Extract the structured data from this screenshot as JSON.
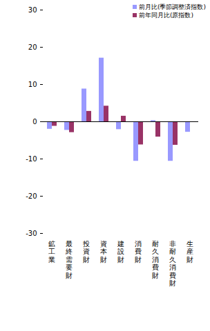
{
  "chart_data": {
    "type": "bar",
    "categories": [
      "鉱工業",
      "最終需要財",
      "投資財",
      "資本財",
      "建設財",
      "消費財",
      "耐久消費財",
      "非耐久消費財",
      "生産財"
    ],
    "series": [
      {
        "name": "前月比(季節調整済指数)",
        "color": "#9999ff",
        "values": [
          -2.0,
          -2.3,
          8.8,
          17.1,
          -2.1,
          -10.6,
          0.3,
          -10.6,
          -2.8
        ]
      },
      {
        "name": "前年同月比(原指数)",
        "color": "#993366",
        "values": [
          -1.2,
          -2.9,
          2.8,
          4.2,
          1.5,
          -6.2,
          -4.1,
          -6.3,
          null
        ]
      }
    ],
    "ylim": [
      -30,
      30
    ],
    "yticks": [
      -30,
      -20,
      -10,
      0,
      10,
      20,
      30
    ],
    "grid": false,
    "legend": "top-right"
  }
}
